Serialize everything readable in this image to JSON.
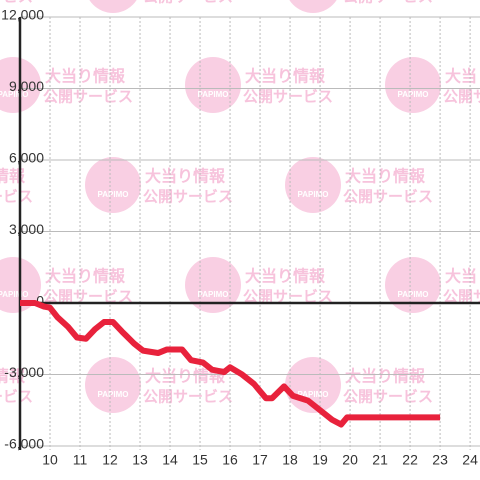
{
  "chart_data": {
    "type": "line",
    "watermark": {
      "logo": "PAPIMO",
      "line1": "大当り情報",
      "line2": "公開サービス"
    },
    "x": [
      9,
      9.5,
      9.8,
      10,
      10.25,
      10.6,
      10.9,
      11.2,
      11.5,
      11.8,
      12.1,
      12.4,
      12.8,
      13.1,
      13.6,
      13.9,
      14.4,
      14.7,
      15.1,
      15.4,
      15.8,
      16,
      16.4,
      16.8,
      17.2,
      17.4,
      17.8,
      18.1,
      18.6,
      18.9,
      19.4,
      19.7,
      19.9,
      20.3,
      23
    ],
    "series": [
      {
        "color": "#e8223c",
        "values": [
          0,
          0,
          -150,
          -200,
          -600,
          -1000,
          -1450,
          -1500,
          -1100,
          -800,
          -800,
          -1200,
          -1700,
          -2000,
          -2100,
          -1950,
          -1950,
          -2400,
          -2500,
          -2800,
          -2900,
          -2700,
          -3000,
          -3400,
          -4000,
          -4000,
          -3500,
          -3900,
          -4100,
          -4400,
          -4900,
          -5100,
          -4800,
          -4800,
          -4800
        ]
      }
    ],
    "xlim": [
      9,
      24.33
    ],
    "xticks": [
      10,
      11,
      12,
      13,
      14,
      15,
      16,
      17,
      18,
      19,
      20,
      21,
      22,
      23,
      24
    ],
    "ylim": [
      -6400,
      12000
    ],
    "yticks": [
      {
        "value": 12000,
        "label": "12,000"
      },
      {
        "value": 9000,
        "label": "9,000"
      },
      {
        "value": 6000,
        "label": "6,000"
      },
      {
        "value": 3000,
        "label": "3,000"
      },
      0,
      {
        "value": -3000,
        "label": "-3,000"
      },
      {
        "value": -6000,
        "label": "-6,000"
      }
    ],
    "grid": true
  }
}
